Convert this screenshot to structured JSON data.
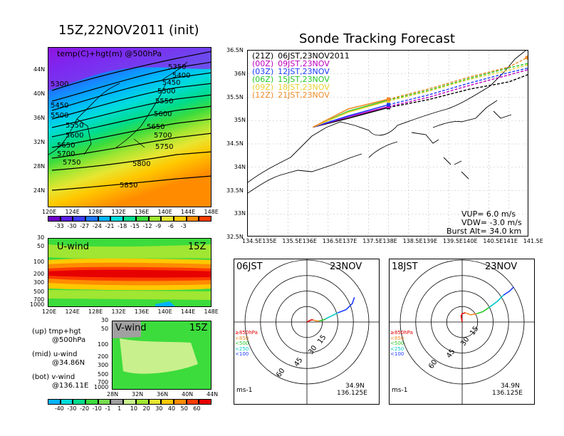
{
  "map_panel": {
    "title": "15Z,22NOV2011 (init)",
    "subtitle": "temp(C)+hgt(m) @500hPa",
    "lat_ticks": [
      "44N",
      "40N",
      "36N",
      "32N",
      "28N",
      "24N"
    ],
    "lon_ticks": [
      "120E",
      "124E",
      "128E",
      "132E",
      "136E",
      "140E",
      "144E",
      "148E"
    ],
    "contours": [
      "5350",
      "5400",
      "5450",
      "5500",
      "5550",
      "5600",
      "5650",
      "5700",
      "5750",
      "5800",
      "5850",
      "5300",
      "5450",
      "5500",
      "5550",
      "5600",
      "5650",
      "5700",
      "5750"
    ],
    "colorbar_labels": [
      "-33",
      "-30",
      "-27",
      "-24",
      "-21",
      "-18",
      "-15",
      "-12",
      "-9",
      "-6",
      "-3"
    ],
    "colorbar_colors": [
      "#6e00c8",
      "#5a1ee8",
      "#3c3cff",
      "#1e78ff",
      "#00b4ff",
      "#00dcdc",
      "#00dc8c",
      "#3cdc3c",
      "#a0e632",
      "#e6e632",
      "#ffc800",
      "#ff8c00",
      "#ff3c00"
    ]
  },
  "u_wind": {
    "label": "U-wind",
    "time": "15Z",
    "p_ticks": [
      "30",
      "50",
      "100",
      "200",
      "300",
      "500",
      "700",
      "1000"
    ],
    "lon_ticks": [
      "120E",
      "124E",
      "128E",
      "132E",
      "136E",
      "140E",
      "144E",
      "148E"
    ]
  },
  "v_wind": {
    "label": "V-wind",
    "time": "15Z",
    "p_ticks": [
      "30",
      "50",
      "100",
      "200",
      "300",
      "500",
      "700",
      "1000"
    ],
    "lat_ticks": [
      "28N",
      "32N",
      "36N",
      "40N",
      "44N"
    ]
  },
  "left_notes": [
    {
      "line1": "(up) tmp+hgt",
      "line2": "@500hPa"
    },
    {
      "line1": "(mid) u-wind",
      "line2": "@34.86N"
    },
    {
      "line1": "(bot) v-wind",
      "line2": "@136.11E"
    }
  ],
  "wind_colorbar": {
    "labels": [
      "-40",
      "-30",
      "-20",
      "-10",
      "-1",
      "1",
      "10",
      "20",
      "30",
      "40",
      "50",
      "60"
    ],
    "colors": [
      "#00b4ff",
      "#00dcdc",
      "#00dc8c",
      "#3cdc3c",
      "#78dc50",
      "#a0a0a0",
      "#c8f08c",
      "#a0e632",
      "#e6e632",
      "#ffc800",
      "#ff8c00",
      "#ff3c00",
      "#e60000"
    ]
  },
  "track_panel": {
    "title": "Sonde Tracking Forecast",
    "lat_ticks": [
      "36.5N",
      "36N",
      "35.5N",
      "35N",
      "34.5N",
      "34N",
      "33.5N",
      "33N",
      "32.5N"
    ],
    "lon_ticks": [
      "134.5E",
      "135E",
      "135.5E",
      "136E",
      "136.5E",
      "137E",
      "137.5E",
      "138E",
      "138.5E",
      "139E",
      "139.5E",
      "140E",
      "140.5E",
      "141E",
      "141.5E"
    ],
    "legend": [
      {
        "run": "(21Z)",
        "time": "06JST,23NOV2011",
        "color": "#000000"
      },
      {
        "run": "(00Z)",
        "time": "09JST,23NOV",
        "color": "#c000c0"
      },
      {
        "run": "(03Z)",
        "time": "12JST,23NOV",
        "color": "#1e3cff"
      },
      {
        "run": "(06Z)",
        "time": "15JST,23NOV",
        "color": "#28c828"
      },
      {
        "run": "(09Z)",
        "time": "18JST,23NOV",
        "color": "#e6d232"
      },
      {
        "run": "(12Z)",
        "time": "21JST,23NOV",
        "color": "#f08c28"
      }
    ],
    "params": [
      "VUP= 6.0 m/s",
      "VDW= -3.0 m/s",
      "Burst Alt= 34.0 km"
    ]
  },
  "chart_data": [
    {
      "type": "line",
      "title": "Sonde Tracking Forecast",
      "xlabel": "",
      "ylabel": "",
      "xlim": [
        134.5,
        141.5
      ],
      "ylim": [
        32.5,
        36.5
      ],
      "grid": true,
      "legend_position": "top-left",
      "series": [
        {
          "name": "(21Z) 06JST,23NOV2011",
          "color": "#000000",
          "ascent": [
            [
              136.12,
              34.86
            ],
            [
              137.0,
              35.05
            ],
            [
              138.0,
              35.28
            ]
          ],
          "descent": [
            [
              138.0,
              35.28
            ],
            [
              139.0,
              35.45
            ],
            [
              140.0,
              35.67
            ],
            [
              141.0,
              35.83
            ],
            [
              141.52,
              36.0
            ]
          ]
        },
        {
          "name": "(00Z) 09JST,23NOV",
          "color": "#c000c0",
          "ascent": [
            [
              136.12,
              34.86
            ],
            [
              137.0,
              35.08
            ],
            [
              138.0,
              35.3
            ]
          ],
          "descent": [
            [
              138.0,
              35.3
            ],
            [
              139.0,
              35.5
            ],
            [
              140.0,
              35.75
            ],
            [
              141.0,
              35.98
            ],
            [
              141.52,
              36.1
            ]
          ]
        },
        {
          "name": "(03Z) 12JST,23NOV",
          "color": "#1e3cff",
          "ascent": [
            [
              136.12,
              34.86
            ],
            [
              137.0,
              35.1
            ],
            [
              138.0,
              35.34
            ]
          ],
          "descent": [
            [
              138.0,
              35.34
            ],
            [
              139.0,
              35.55
            ],
            [
              140.0,
              35.8
            ],
            [
              141.0,
              36.03
            ],
            [
              141.55,
              36.14
            ]
          ]
        },
        {
          "name": "(06Z) 15JST,23NOV",
          "color": "#28c828",
          "ascent": [
            [
              136.12,
              34.86
            ],
            [
              137.0,
              35.2
            ],
            [
              138.0,
              35.44
            ]
          ],
          "descent": [
            [
              138.0,
              35.44
            ],
            [
              139.0,
              35.65
            ],
            [
              140.0,
              35.9
            ],
            [
              141.0,
              36.13
            ],
            [
              141.6,
              36.25
            ]
          ]
        },
        {
          "name": "(09Z) 18JST,23NOV",
          "color": "#e6d232",
          "ascent": [
            [
              136.12,
              34.86
            ],
            [
              137.0,
              35.18
            ],
            [
              138.0,
              35.42
            ]
          ],
          "descent": [
            [
              138.0,
              35.42
            ],
            [
              139.0,
              35.63
            ],
            [
              140.0,
              35.88
            ],
            [
              141.0,
              36.08
            ],
            [
              141.5,
              36.2
            ]
          ]
        },
        {
          "name": "(12Z) 21JST,23NOV",
          "color": "#f08c28",
          "ascent": [
            [
              136.12,
              34.86
            ],
            [
              137.0,
              35.25
            ],
            [
              138.0,
              35.46
            ]
          ],
          "descent": [
            [
              138.0,
              35.46
            ],
            [
              139.0,
              35.68
            ],
            [
              140.0,
              35.93
            ],
            [
              141.0,
              36.15
            ],
            [
              141.45,
              36.35
            ]
          ]
        }
      ]
    },
    {
      "type": "line",
      "title": "06JST 23NOV",
      "polar": true,
      "ring_labels": [
        "15",
        "30",
        "45",
        "60"
      ],
      "unit": "ms-1",
      "location": [
        "34.9N",
        "136.125E"
      ],
      "legend": [
        {
          "label": "≥850hPa",
          "color": "#e60000"
        },
        {
          "label": "<850",
          "color": "#f08c28"
        },
        {
          "label": "<500",
          "color": "#28c828"
        },
        {
          "label": "<250",
          "color": "#00c8c8"
        },
        {
          "label": "<100",
          "color": "#1e3cff"
        }
      ],
      "series": [
        {
          "name": "≥850hPa",
          "color": "#e60000",
          "u": [
            0,
            2,
            4,
            6
          ],
          "v": [
            0,
            1,
            2,
            2
          ]
        },
        {
          "name": "<850",
          "color": "#f08c28",
          "u": [
            6,
            9,
            12
          ],
          "v": [
            2,
            1,
            1
          ]
        },
        {
          "name": "<500",
          "color": "#28c828",
          "u": [
            12,
            16,
            18
          ],
          "v": [
            1,
            2,
            3
          ]
        },
        {
          "name": "<250",
          "color": "#00c8c8",
          "u": [
            18,
            24,
            30
          ],
          "v": [
            3,
            6,
            9
          ]
        },
        {
          "name": "<100",
          "color": "#1e3cff",
          "u": [
            30,
            38,
            44,
            46
          ],
          "v": [
            9,
            12,
            18,
            24
          ]
        }
      ]
    },
    {
      "type": "line",
      "title": "18JST 23NOV",
      "polar": true,
      "ring_labels": [
        "15",
        "30",
        "45",
        "60"
      ],
      "unit": "ms-1",
      "location": [
        "34.9N",
        "136.125E"
      ],
      "legend": [
        {
          "label": "≥850hPa",
          "color": "#e60000"
        },
        {
          "label": "<850",
          "color": "#f08c28"
        },
        {
          "label": "<500",
          "color": "#28c828"
        },
        {
          "label": "<250",
          "color": "#00c8c8"
        },
        {
          "label": "<100",
          "color": "#1e3cff"
        }
      ],
      "series": [
        {
          "name": "≥850hPa",
          "color": "#e60000",
          "u": [
            0,
            -1,
            0,
            3
          ],
          "v": [
            0,
            6,
            8,
            9
          ]
        },
        {
          "name": "<850",
          "color": "#f08c28",
          "u": [
            3,
            8,
            14
          ],
          "v": [
            9,
            7,
            8
          ]
        },
        {
          "name": "<500",
          "color": "#28c828",
          "u": [
            14,
            20,
            26
          ],
          "v": [
            8,
            10,
            14
          ]
        },
        {
          "name": "<250",
          "color": "#00c8c8",
          "u": [
            26,
            34,
            40
          ],
          "v": [
            14,
            20,
            26
          ]
        },
        {
          "name": "<100",
          "color": "#1e3cff",
          "u": [
            40,
            46,
            50
          ],
          "v": [
            26,
            30,
            34
          ]
        }
      ]
    }
  ]
}
